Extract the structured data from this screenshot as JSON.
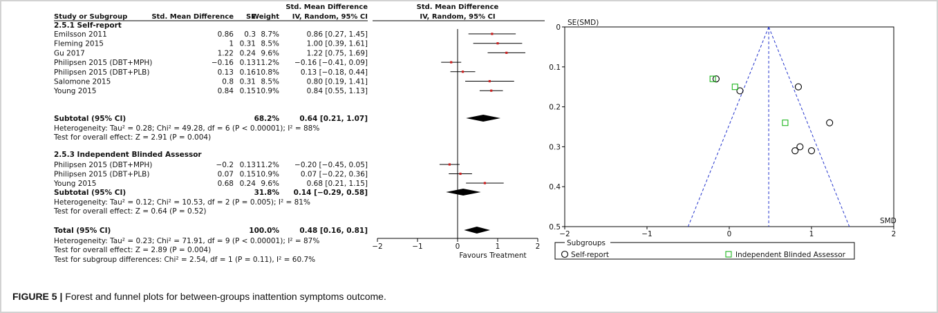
{
  "forest": {
    "header_top": {
      "smd_ivr": "Std. Mean Difference",
      "plot": "Std. Mean Difference"
    },
    "headers": {
      "study": "Study or Subgroup",
      "smd": "Std. Mean Difference",
      "se": "SE",
      "weight": "Weight",
      "ci": "IV, Random, 95% CI",
      "plot": "IV, Random, 95% CI"
    },
    "groups": [
      {
        "title": "2.5.1 Self-report",
        "rows": [
          {
            "study": "Emilsson 2011",
            "smd": "0.86",
            "se": "0.3",
            "weight": "8.7%",
            "ci": "0.86 [0.27, 1.45]",
            "est": 0.86,
            "lo": 0.27,
            "hi": 1.45
          },
          {
            "study": "Fleming 2015",
            "smd": "1",
            "se": "0.31",
            "weight": "8.5%",
            "ci": "1.00 [0.39, 1.61]",
            "est": 1.0,
            "lo": 0.39,
            "hi": 1.61
          },
          {
            "study": "Gu 2017",
            "smd": "1.22",
            "se": "0.24",
            "weight": "9.6%",
            "ci": "1.22 [0.75, 1.69]",
            "est": 1.22,
            "lo": 0.75,
            "hi": 1.69
          },
          {
            "study": "Philipsen 2015 (DBT+MPH)",
            "smd": "−0.16",
            "se": "0.13",
            "weight": "11.2%",
            "ci": "−0.16 [−0.41, 0.09]",
            "est": -0.16,
            "lo": -0.41,
            "hi": 0.09
          },
          {
            "study": "Philipsen 2015 (DBT+PLB)",
            "smd": "0.13",
            "se": "0.16",
            "weight": "10.8%",
            "ci": "0.13 [−0.18, 0.44]",
            "est": 0.13,
            "lo": -0.18,
            "hi": 0.44
          },
          {
            "study": "Salomone 2015",
            "smd": "0.8",
            "se": "0.31",
            "weight": "8.5%",
            "ci": "0.80 [0.19, 1.41]",
            "est": 0.8,
            "lo": 0.19,
            "hi": 1.41
          },
          {
            "study": "Young 2015",
            "smd": "0.84",
            "se": "0.15",
            "weight": "10.9%",
            "ci": "0.84 [0.55, 1.13]",
            "est": 0.84,
            "lo": 0.55,
            "hi": 1.13
          }
        ],
        "subtotal": {
          "label": "Subtotal (95% CI)",
          "weight": "68.2%",
          "ci": "0.64 [0.21, 1.07]",
          "est": 0.64,
          "lo": 0.21,
          "hi": 1.07
        },
        "notes": [
          "Heterogeneity: Tau² = 0.28; Chi² = 49.28, df = 6 (P < 0.00001); I² = 88%",
          "Test for overall effect: Z = 2.91 (P = 0.004)"
        ]
      },
      {
        "title": "2.5.3 Independent Blinded Assessor",
        "rows": [
          {
            "study": "Philipsen 2015 (DBT+MPH)",
            "smd": "−0.2",
            "se": "0.13",
            "weight": "11.2%",
            "ci": "−0.20 [−0.45, 0.05]",
            "est": -0.2,
            "lo": -0.45,
            "hi": 0.05
          },
          {
            "study": "Philipsen 2015 (DBT+PLB)",
            "smd": "0.07",
            "se": "0.15",
            "weight": "10.9%",
            "ci": "0.07 [−0.22, 0.36]",
            "est": 0.07,
            "lo": -0.22,
            "hi": 0.36
          },
          {
            "study": "Young 2015",
            "smd": "0.68",
            "se": "0.24",
            "weight": "9.6%",
            "ci": "0.68 [0.21, 1.15]",
            "est": 0.68,
            "lo": 0.21,
            "hi": 1.15
          }
        ],
        "subtotal": {
          "label": "Subtotal (95% CI)",
          "weight": "31.8%",
          "ci": "0.14 [−0.29, 0.58]",
          "est": 0.14,
          "lo": -0.29,
          "hi": 0.58
        },
        "notes": [
          "Heterogeneity: Tau² = 0.12; Chi² = 10.53, df = 2 (P = 0.005); I² = 81%",
          "Test for overall effect: Z = 0.64 (P = 0.52)"
        ]
      }
    ],
    "total": {
      "label": "Total (95% CI)",
      "weight": "100.0%",
      "ci": "0.48 [0.16, 0.81]",
      "est": 0.48,
      "lo": 0.16,
      "hi": 0.81,
      "notes": [
        "Heterogeneity: Tau² = 0.23; Chi² = 71.91, df = 9 (P < 0.00001); I² = 87%",
        "Test for overall effect: Z = 2.89 (P = 0.004)",
        "Test for subgroup differences: Chi² = 2.54, df = 1 (P = 0.11), I² = 60.7%"
      ]
    },
    "axis": {
      "ticks": [
        "−2",
        "−1",
        "0",
        "1",
        "2"
      ],
      "label": "Favours Treatment"
    }
  },
  "chart_data": {
    "type": "scatter",
    "title": "",
    "xlabel": "SMD",
    "ylabel": "SE(SMD)",
    "xlim": [
      -2,
      2
    ],
    "ylim": [
      0,
      0.5
    ],
    "y_inverted": true,
    "x_ticks": [
      "−2",
      "−1",
      "0",
      "1",
      "2"
    ],
    "y_ticks": [
      "0",
      "0.1",
      "0.2",
      "0.3",
      "0.4",
      "0.5"
    ],
    "pooled_smd": 0.48,
    "series": [
      {
        "name": "Self-report",
        "marker": "circle",
        "color": "#000000",
        "points": [
          [
            0.86,
            0.3
          ],
          [
            1.0,
            0.31
          ],
          [
            1.22,
            0.24
          ],
          [
            -0.16,
            0.13
          ],
          [
            0.13,
            0.16
          ],
          [
            0.8,
            0.31
          ],
          [
            0.84,
            0.15
          ]
        ]
      },
      {
        "name": "Independent Blinded Assessor",
        "marker": "square",
        "color": "#1cb51c",
        "points": [
          [
            -0.2,
            0.13
          ],
          [
            0.07,
            0.15
          ],
          [
            0.68,
            0.24
          ]
        ]
      }
    ],
    "legend_title": "Subgroups",
    "legend_position": "bottom",
    "funnel_color": "#2233cc"
  },
  "caption": {
    "label": "FIGURE 5 |",
    "text": "Forest and funnel plots for between-groups inattention symptoms outcome."
  }
}
